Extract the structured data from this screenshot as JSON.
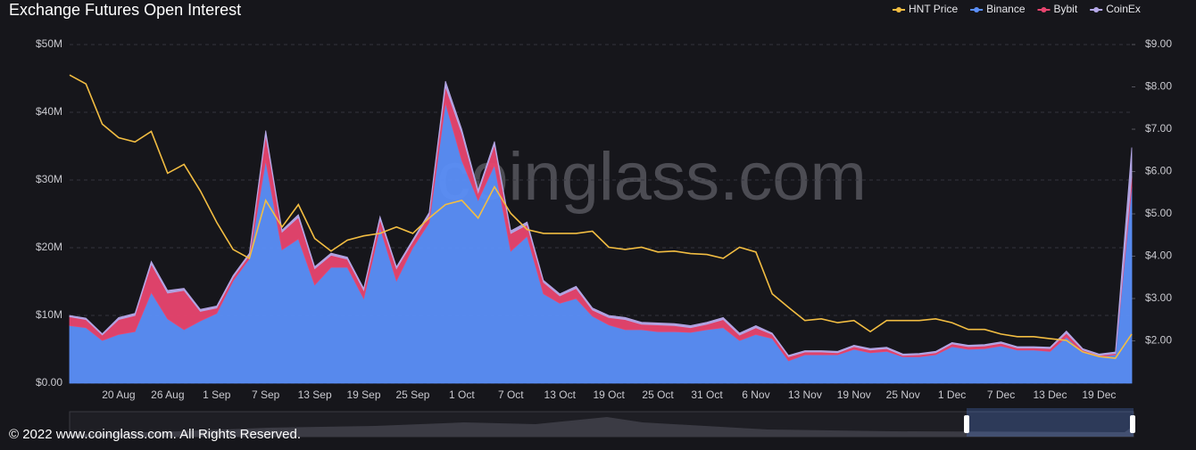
{
  "chart_data": {
    "type": "area",
    "title": "Exchange  Futures Open Interest",
    "watermark": "coinglass.com",
    "footer": "© 2022 www.coinglass.com. All Rights Reserved.",
    "categories": [
      null,
      null,
      null,
      "20 Aug",
      null,
      null,
      "26 Aug",
      null,
      null,
      "1 Sep",
      null,
      null,
      "7 Sep",
      null,
      null,
      "13 Sep",
      null,
      null,
      "19 Sep",
      null,
      null,
      "25 Sep",
      null,
      null,
      "1 Oct",
      null,
      null,
      "7 Oct",
      null,
      null,
      "13 Oct",
      null,
      null,
      "19 Oct",
      null,
      null,
      "25 Oct",
      null,
      null,
      "31 Oct",
      null,
      null,
      "6 Nov",
      null,
      null,
      "13 Nov",
      null,
      null,
      "19 Nov",
      null,
      null,
      "25 Nov",
      null,
      null,
      "1 Dec",
      null,
      null,
      "7 Dec",
      null,
      null,
      "13 Dec",
      null,
      null,
      "19 Dec",
      null,
      null
    ],
    "ylim": [
      0,
      50
    ],
    "yticks": [
      {
        "value": 0,
        "label": "$0.00"
      },
      {
        "value": 10,
        "label": "$10M"
      },
      {
        "value": 20,
        "label": "$20M"
      },
      {
        "value": 30,
        "label": "$30M"
      },
      {
        "value": 40,
        "label": "$40M"
      },
      {
        "value": 50,
        "label": "$50M"
      }
    ],
    "y2lim": [
      1,
      9
    ],
    "y2ticks": [
      {
        "value": 2,
        "label": "$2.00"
      },
      {
        "value": 3,
        "label": "$3.00"
      },
      {
        "value": 4,
        "label": "$4.00"
      },
      {
        "value": 5,
        "label": "$5.00"
      },
      {
        "value": 6,
        "label": "$6.00"
      },
      {
        "value": 7,
        "label": "$7.00"
      },
      {
        "value": 8,
        "label": "$8.00"
      },
      {
        "value": 9,
        "label": "$9.00"
      }
    ],
    "grid": true,
    "legend": "top-right",
    "series": [
      {
        "name": "HNT Price",
        "type": "line",
        "axis": "y2",
        "color": "#f2bd42",
        "values": [
          8.28,
          8.07,
          7.12,
          6.8,
          6.7,
          6.95,
          5.96,
          6.17,
          5.54,
          4.8,
          4.16,
          3.95,
          5.32,
          4.69,
          5.22,
          4.42,
          4.12,
          4.38,
          4.48,
          4.54,
          4.69,
          4.54,
          4.9,
          5.22,
          5.32,
          4.9,
          5.64,
          5.01,
          4.63,
          4.54,
          4.54,
          4.54,
          4.59,
          4.21,
          4.16,
          4.21,
          4.1,
          4.12,
          4.06,
          4.04,
          3.95,
          4.21,
          4.1,
          3.11,
          2.79,
          2.48,
          2.52,
          2.43,
          2.48,
          2.22,
          2.48,
          2.48,
          2.48,
          2.52,
          2.43,
          2.27,
          2.27,
          2.16,
          2.1,
          2.1,
          2.05,
          2.01,
          1.74,
          1.63,
          1.59,
          2.16
        ]
      },
      {
        "name": "Binance",
        "type": "area",
        "color": "#5b8ff9",
        "values": [
          8.5,
          8.2,
          6.3,
          7.2,
          7.6,
          13.4,
          9.5,
          7.9,
          9.2,
          10.3,
          15.1,
          18.4,
          32.9,
          19.7,
          21.3,
          14.5,
          17.1,
          17.1,
          12.5,
          23,
          15.1,
          20,
          23.7,
          41.4,
          32.9,
          27,
          32.2,
          19.5,
          21.7,
          13.2,
          11.8,
          12.5,
          9.9,
          8.6,
          7.9,
          7.9,
          7.6,
          7.6,
          7.5,
          7.9,
          8.2,
          6.3,
          7.2,
          6.6,
          3.3,
          4.2,
          4.2,
          4.2,
          5,
          4.5,
          4.7,
          3.9,
          3.9,
          4.2,
          5.4,
          5,
          5.1,
          5.5,
          4.9,
          4.9,
          4.7,
          6.8,
          4.6,
          3.9,
          4.2,
          29
        ]
      },
      {
        "name": "Bybit",
        "type": "area",
        "color": "#e8456f",
        "values": [
          1.3,
          1.2,
          0.8,
          2.2,
          2.4,
          4.2,
          3.8,
          5.8,
          1.4,
          0.8,
          0.5,
          0.5,
          3.8,
          2.6,
          3.2,
          2.4,
          1.8,
          1.2,
          1.2,
          1.2,
          1.8,
          0.9,
          1.1,
          2.4,
          4,
          1.1,
          3,
          2.6,
          1.7,
          1.7,
          1.1,
          1.5,
          0.9,
          1.1,
          1.5,
          0.8,
          1,
          0.9,
          0.7,
          0.8,
          1.2,
          0.8,
          1,
          0.6,
          0.6,
          0.4,
          0.4,
          0.3,
          0.4,
          0.4,
          0.4,
          0.2,
          0.3,
          0.3,
          0.4,
          0.4,
          0.4,
          0.4,
          0.3,
          0.3,
          0.4,
          0.6,
          0.3,
          0.2,
          0.2,
          1.5
        ]
      },
      {
        "name": "CoinEx",
        "type": "area",
        "color": "#b5a8e8",
        "values": [
          0.2,
          0.2,
          0.2,
          0.3,
          0.3,
          0.4,
          0.4,
          0.3,
          0.3,
          0.3,
          0.3,
          0.3,
          0.6,
          0.3,
          0.4,
          0.3,
          0.3,
          0.3,
          0.3,
          0.4,
          0.3,
          0.3,
          0.4,
          0.8,
          0.6,
          0.4,
          0.5,
          0.4,
          0.4,
          0.3,
          0.3,
          0.3,
          0.3,
          0.3,
          0.3,
          0.3,
          0.3,
          0.3,
          0.3,
          0.3,
          0.3,
          0.3,
          0.3,
          0.2,
          0.2,
          0.2,
          0.2,
          0.2,
          0.2,
          0.2,
          0.2,
          0.2,
          0.2,
          0.2,
          0.2,
          0.2,
          0.2,
          0.2,
          0.2,
          0.2,
          0.2,
          0.3,
          0.2,
          0.2,
          0.2,
          4.3
        ]
      }
    ]
  }
}
